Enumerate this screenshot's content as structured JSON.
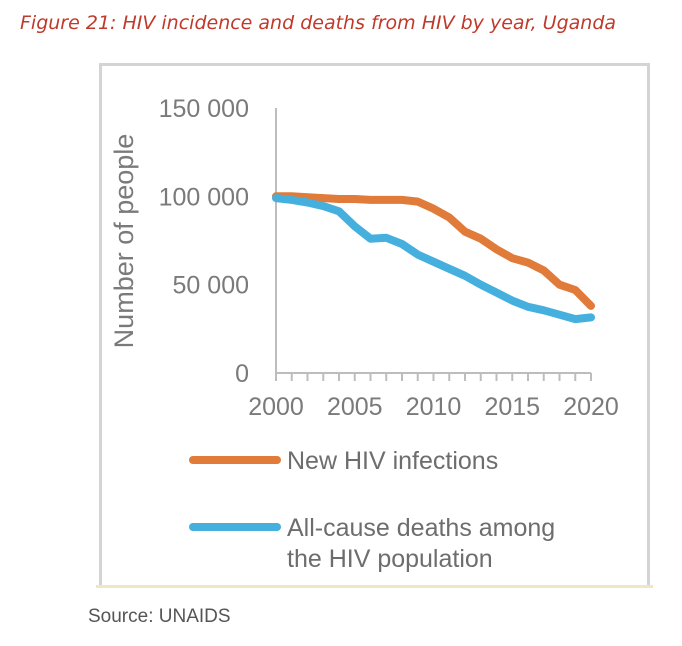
{
  "figure_title": "Figure 21: HIV incidence and deaths from HIV by year, Uganda",
  "source": "Source: UNAIDS",
  "chart_data": {
    "type": "line",
    "title": "",
    "xlabel": "",
    "ylabel": "Number of people",
    "xlim": [
      2000,
      2020
    ],
    "ylim": [
      0,
      150000
    ],
    "x_ticks": [
      2000,
      2005,
      2010,
      2015,
      2020
    ],
    "y_ticks": [
      0,
      50000,
      100000,
      150000
    ],
    "y_tick_labels": [
      "0",
      "50 000",
      "100 000",
      "150 000"
    ],
    "grid": false,
    "legend_position": "bottom",
    "x": [
      2000,
      2001,
      2002,
      2003,
      2004,
      2005,
      2006,
      2007,
      2008,
      2009,
      2010,
      2011,
      2012,
      2013,
      2014,
      2015,
      2016,
      2017,
      2018,
      2019,
      2020
    ],
    "series": [
      {
        "name": "New HIV infections",
        "color": "#e07b39",
        "values": [
          100000,
          100000,
          99500,
          99000,
          98500,
          98500,
          98000,
          98000,
          98000,
          97000,
          93000,
          88000,
          80000,
          76000,
          70000,
          65000,
          62500,
          58000,
          50000,
          47000,
          38000
        ]
      },
      {
        "name": "All-cause deaths among the HIV population",
        "color": "#45b0dd",
        "values": [
          99000,
          98000,
          96500,
          94500,
          91500,
          83000,
          76000,
          76500,
          73000,
          67000,
          63000,
          59000,
          55000,
          50000,
          45500,
          41000,
          37500,
          35500,
          33000,
          30500,
          31500
        ]
      }
    ]
  }
}
